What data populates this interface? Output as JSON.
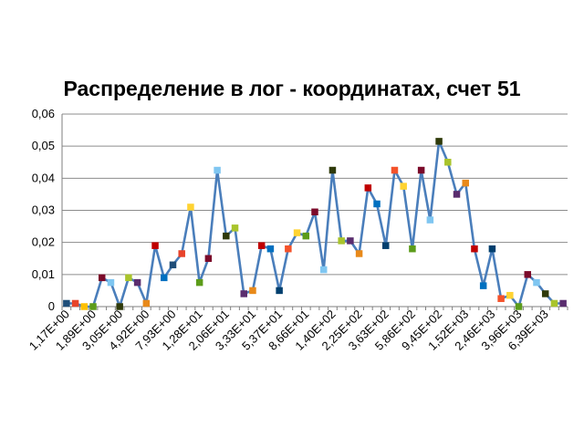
{
  "chart_data": {
    "type": "line",
    "title": "Распределение в лог - координатах, счет 51",
    "xlabel": "",
    "ylabel": "",
    "ylim": [
      0,
      0.06
    ],
    "y_ticks": [
      "0",
      "0,01",
      "0,02",
      "0,03",
      "0,04",
      "0,05",
      "0,06"
    ],
    "x_tick_labels": [
      "1,17E+00",
      "1,89E+00",
      "3,05E+00",
      "4,92E+00",
      "7,93E+00",
      "1,28E+01",
      "2,06E+01",
      "3,33E+01",
      "5,37E+01",
      "8,66E+01",
      "1,40E+02",
      "2,25E+02",
      "3,63E+02",
      "5,86E+02",
      "9,45E+02",
      "1,52E+03",
      "2,46E+03",
      "3,96E+03",
      "6,39E+03"
    ],
    "grid": true,
    "legend": "none",
    "line_color": "#4a7ebb",
    "values": [
      0.001,
      0.001,
      0.0,
      0.0,
      0.009,
      0.0075,
      0.0,
      0.009,
      0.0075,
      0.001,
      0.019,
      0.009,
      0.013,
      0.0165,
      0.031,
      0.0075,
      0.015,
      0.0425,
      0.022,
      0.0245,
      0.004,
      0.005,
      0.019,
      0.018,
      0.005,
      0.018,
      0.023,
      0.022,
      0.0295,
      0.0115,
      0.0425,
      0.0205,
      0.0205,
      0.0165,
      0.037,
      0.032,
      0.019,
      0.0425,
      0.0375,
      0.018,
      0.0425,
      0.027,
      0.0515,
      0.045,
      0.035,
      0.0385,
      0.018,
      0.0065,
      0.018,
      0.0025,
      0.0035,
      0.0,
      0.01,
      0.0075,
      0.004,
      0.001,
      0.001
    ],
    "marker_colors": [
      "#1f4e79",
      "#e8432a",
      "#ffc000",
      "#5c9c1a",
      "#7b0a2a",
      "#7fc6f1",
      "#2f3a0a",
      "#a9c42c",
      "#5a2d6e",
      "#e8891a",
      "#c00000",
      "#0070c0",
      "#1f4e79",
      "#e8432a",
      "#ffd332",
      "#5c9c1a",
      "#7b0a2a",
      "#7fc6f1",
      "#2f3a0a",
      "#a9c42c",
      "#5a2d6e",
      "#e8891a",
      "#c00000",
      "#0070c0",
      "#003f6e",
      "#f4522a",
      "#ffd332",
      "#5c9c1a",
      "#7b0a2a",
      "#7fc6f1",
      "#2f3a0a",
      "#a9c42c",
      "#5a2d6e",
      "#e8891a",
      "#c00000",
      "#0070c0",
      "#003f6e",
      "#f4522a",
      "#ffd332",
      "#5c9c1a",
      "#7b0a2a",
      "#7fc6f1",
      "#2f3a0a",
      "#a9c42c",
      "#5a2d6e",
      "#e8891a",
      "#c00000",
      "#0070c0",
      "#003f6e",
      "#f4522a",
      "#ffd332",
      "#5c9c1a",
      "#7b0a2a",
      "#7fc6f1",
      "#2f3a0a",
      "#a9c42c",
      "#5a2d6e"
    ]
  }
}
